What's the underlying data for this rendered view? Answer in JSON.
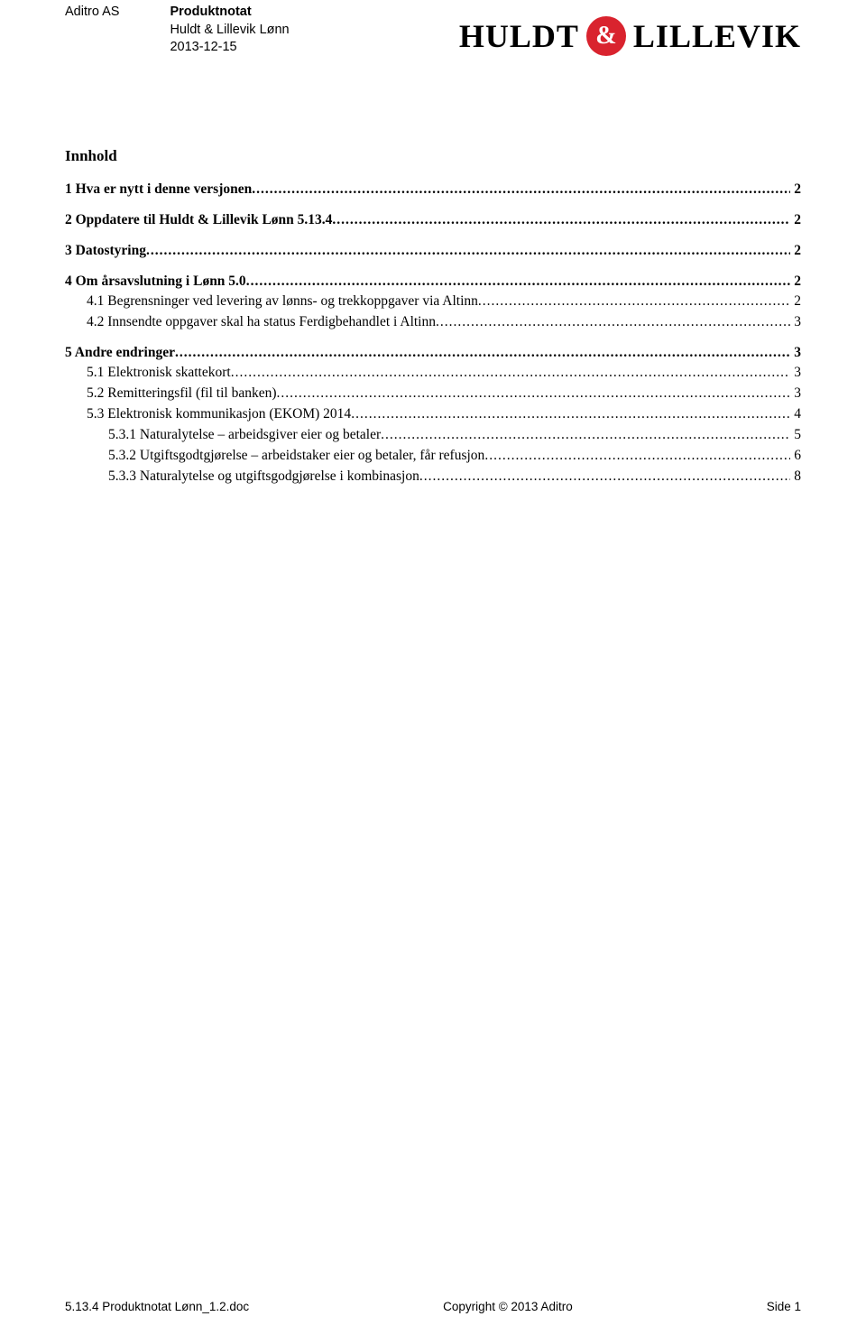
{
  "header": {
    "company": "Aditro AS",
    "doc_type": "Produktnotat",
    "product": "Huldt & Lillevik Lønn",
    "date": "2013-12-15"
  },
  "logo": {
    "word1": "HULDT",
    "amp": "&",
    "word2": "LILLEVIK",
    "circle_bg": "#d9232e",
    "circle_fg": "#ffffff"
  },
  "toc": {
    "title": "Innhold",
    "entries": [
      {
        "label": "1 Hva er nytt i denne versjonen",
        "page": "2",
        "bold": true,
        "indent": 0
      },
      {
        "label": "2 Oppdatere til Huldt & Lillevik Lønn 5.13.4",
        "page": "2",
        "bold": true,
        "indent": 0
      },
      {
        "label": "3 Datostyring",
        "page": "2",
        "bold": true,
        "indent": 0
      },
      {
        "label": "4 Om årsavslutning i Lønn 5.0",
        "page": "2",
        "bold": true,
        "indent": 0
      },
      {
        "label": "4.1 Begrensninger ved levering av lønns- og trekkoppgaver via Altinn",
        "page": "2",
        "bold": false,
        "indent": 1
      },
      {
        "label": "4.2 Innsendte oppgaver skal ha status Ferdigbehandlet i Altinn",
        "page": "3",
        "bold": false,
        "indent": 1
      },
      {
        "label": "5 Andre endringer",
        "page": "3",
        "bold": true,
        "indent": 0
      },
      {
        "label": "5.1 Elektronisk skattekort",
        "page": "3",
        "bold": false,
        "indent": 1
      },
      {
        "label": "5.2 Remitteringsfil (fil til banken)",
        "page": "3",
        "bold": false,
        "indent": 1
      },
      {
        "label": "5.3 Elektronisk kommunikasjon (EKOM) 2014",
        "page": "4",
        "bold": false,
        "indent": 1
      },
      {
        "label": "5.3.1 Naturalytelse – arbeidsgiver eier og betaler",
        "page": "5",
        "bold": false,
        "indent": 2
      },
      {
        "label": "5.3.2 Utgiftsgodtgjørelse – arbeidstaker eier og betaler, får refusjon",
        "page": "6",
        "bold": false,
        "indent": 2
      },
      {
        "label": "5.3.3 Naturalytelse og utgiftsgodgjørelse i kombinasjon",
        "page": "8",
        "bold": false,
        "indent": 2
      }
    ]
  },
  "footer": {
    "left": "5.13.4 Produktnotat Lønn_1.2.doc",
    "center": "Copyright © 2013 Aditro",
    "right": "Side 1"
  }
}
